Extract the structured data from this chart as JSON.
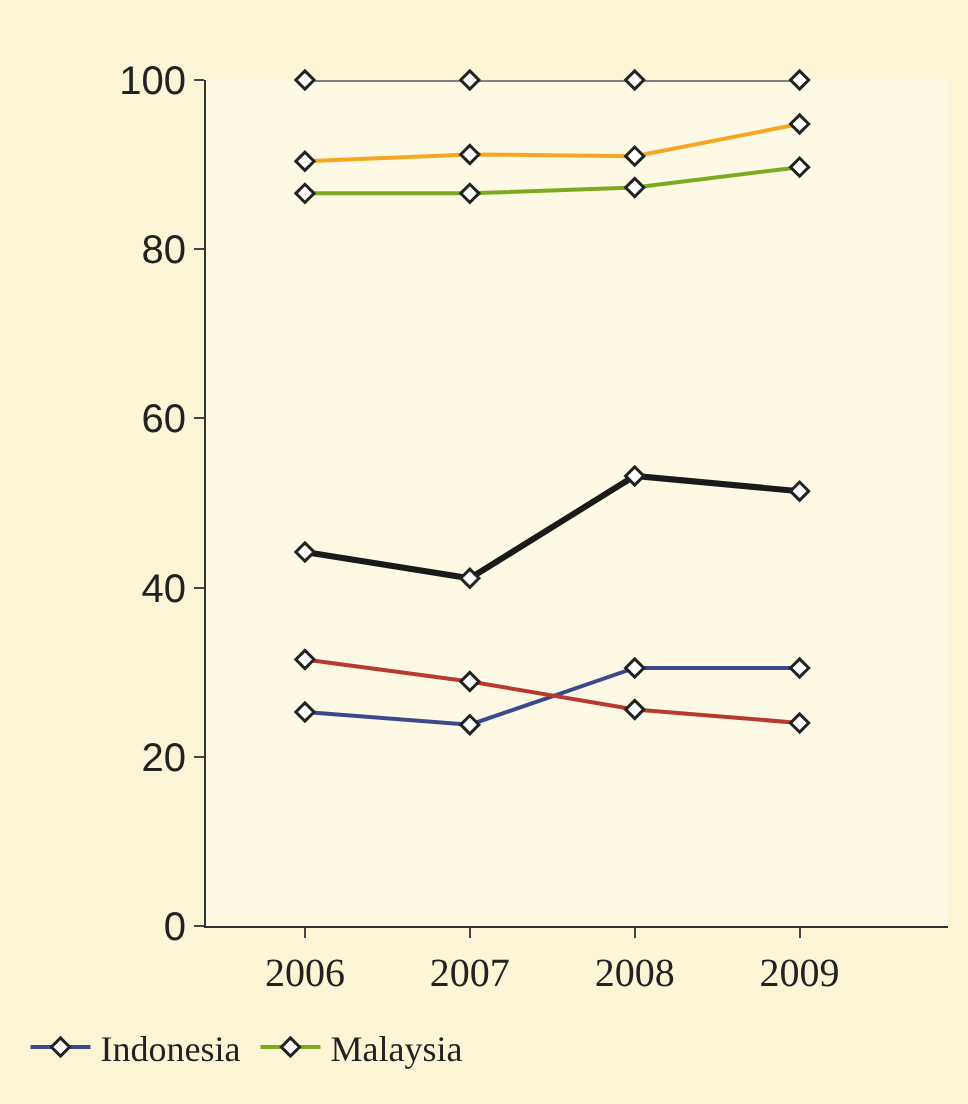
{
  "chart_data": {
    "type": "line",
    "categories": [
      "2006",
      "2007",
      "2008",
      "2009"
    ],
    "series": [
      {
        "color": "#808080",
        "values": [
          100,
          100,
          100,
          100
        ]
      },
      {
        "color": "#f5a623",
        "values": [
          90.4,
          91.2,
          91,
          94.8
        ]
      },
      {
        "name": "Malaysia",
        "color": "#7aab1e",
        "values": [
          86.6,
          86.6,
          87.3,
          89.7
        ]
      },
      {
        "color": "#1a1a1a",
        "values": [
          44.2,
          41.1,
          53.2,
          51.4
        ]
      },
      {
        "color": "#b83a2e",
        "values": [
          31.5,
          28.9,
          25.6,
          24
        ]
      },
      {
        "name": "Indonesia",
        "color": "#3a4a8c",
        "values": [
          25.3,
          23.8,
          30.5,
          30.5
        ]
      }
    ],
    "ylim": [
      0,
      100
    ],
    "yticks": [
      0,
      20,
      40,
      60,
      80,
      100
    ],
    "grid": false,
    "legend": "bottom",
    "marker": "diamond",
    "line_style": "solid"
  }
}
